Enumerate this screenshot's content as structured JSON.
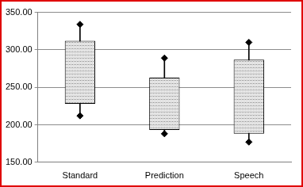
{
  "chart_data": {
    "type": "boxplot",
    "categories": [
      "Standard",
      "Prediction",
      "Speech"
    ],
    "min": [
      212,
      188,
      177
    ],
    "q1": [
      228,
      193,
      188
    ],
    "q3": [
      312,
      263,
      287
    ],
    "max": [
      334,
      289,
      310
    ],
    "color": "#c8c8c8",
    "ylim": [
      150,
      350
    ],
    "yticks": [
      {
        "value": 150,
        "label": "150.00"
      },
      {
        "value": 200,
        "label": "200.00"
      },
      {
        "value": 250,
        "label": "250.00"
      },
      {
        "value": 300,
        "label": "300.00"
      },
      {
        "value": 350,
        "label": "350.00"
      }
    ],
    "grid": true
  }
}
